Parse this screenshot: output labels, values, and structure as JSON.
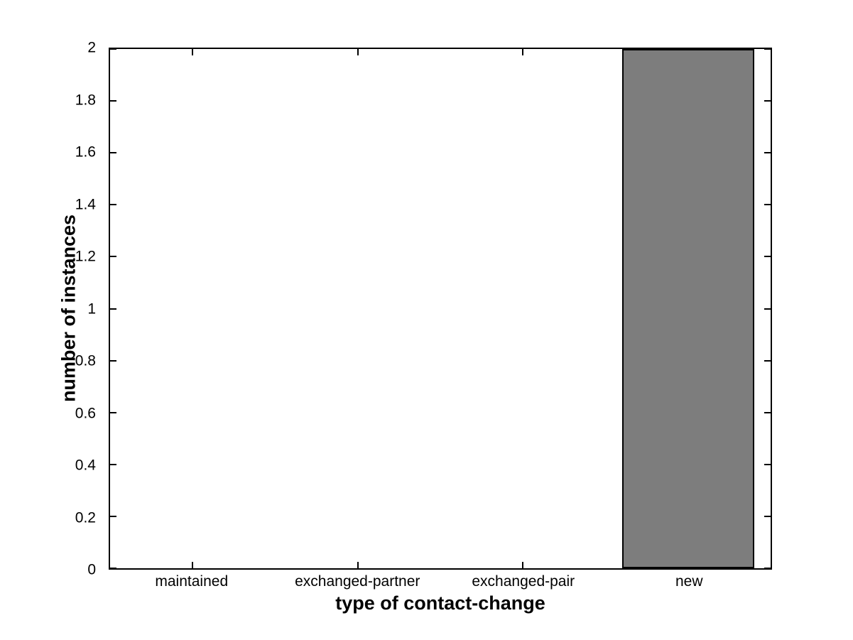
{
  "figure": {
    "background_color": "#ffffff",
    "axis_color": "#000000",
    "text_color": "#000000"
  },
  "chart_data": {
    "type": "bar",
    "title": "",
    "categories": [
      "maintained",
      "exchanged-partner",
      "exchanged-pair",
      "new"
    ],
    "values": [
      0,
      0,
      0,
      2
    ],
    "xlabel": "type of contact-change",
    "ylabel": "number of instances",
    "ylim": [
      0,
      2
    ],
    "x_range": [
      0.5,
      4.5
    ],
    "yticks": [
      0,
      0.2,
      0.4,
      0.6,
      0.8,
      1,
      1.2,
      1.4,
      1.6,
      1.8,
      2
    ],
    "ytick_labels": [
      "0",
      "0.2",
      "0.4",
      "0.6",
      "0.8",
      "1",
      "1.2",
      "1.4",
      "1.6",
      "1.8",
      "2"
    ],
    "bar_width_fraction": 0.8,
    "bar_fill_color": "#7d7d7d",
    "bar_edge_color": "#000000",
    "grid": false,
    "legend": null,
    "box": true
  }
}
